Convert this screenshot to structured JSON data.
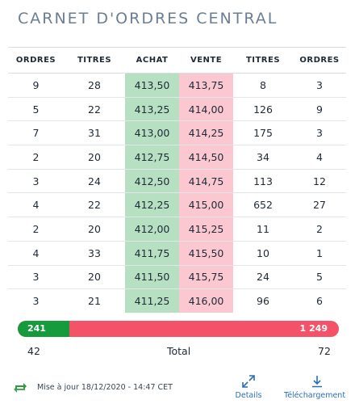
{
  "title": "CARNET D'ORDRES CENTRAL",
  "headers": [
    "ORDRES",
    "TITRES",
    "ACHAT",
    "VENTE",
    "TITRES",
    "ORDRES"
  ],
  "rows": [
    [
      "9",
      "28",
      "413,50",
      "413,75",
      "8",
      "3"
    ],
    [
      "5",
      "22",
      "413,25",
      "414,00",
      "126",
      "9"
    ],
    [
      "7",
      "31",
      "413,00",
      "414,25",
      "175",
      "3"
    ],
    [
      "2",
      "20",
      "412,75",
      "414,50",
      "34",
      "4"
    ],
    [
      "3",
      "24",
      "412,50",
      "414,75",
      "113",
      "12"
    ],
    [
      "4",
      "22",
      "412,25",
      "415,00",
      "652",
      "27"
    ],
    [
      "2",
      "20",
      "412,00",
      "415,25",
      "11",
      "2"
    ],
    [
      "4",
      "33",
      "411,75",
      "415,50",
      "10",
      "1"
    ],
    [
      "3",
      "20",
      "411,50",
      "415,75",
      "24",
      "5"
    ],
    [
      "3",
      "21",
      "411,25",
      "416,00",
      "96",
      "6"
    ]
  ],
  "balance": {
    "buy_label": "241",
    "sell_label": "1 249",
    "buy_value": 241,
    "sell_value": 1249,
    "buy_color": "#169b3c",
    "sell_color": "#f35268"
  },
  "totals": {
    "left": "42",
    "label": "Total",
    "right": "72"
  },
  "footer": {
    "refresh_icon": "refresh-icon",
    "update_text": "Mise à jour 18/12/2020 - 14:47 CET",
    "details_label": "Details",
    "details_icon": "expand-icon",
    "download_label": "Téléchargement",
    "download_icon": "download-icon"
  },
  "colors": {
    "buy_cell": "#b7e0c3",
    "sell_cell": "#fbc8d1",
    "title": "#6b7f93",
    "link": "#2a6fbb",
    "refresh": "#2e9a3a"
  }
}
